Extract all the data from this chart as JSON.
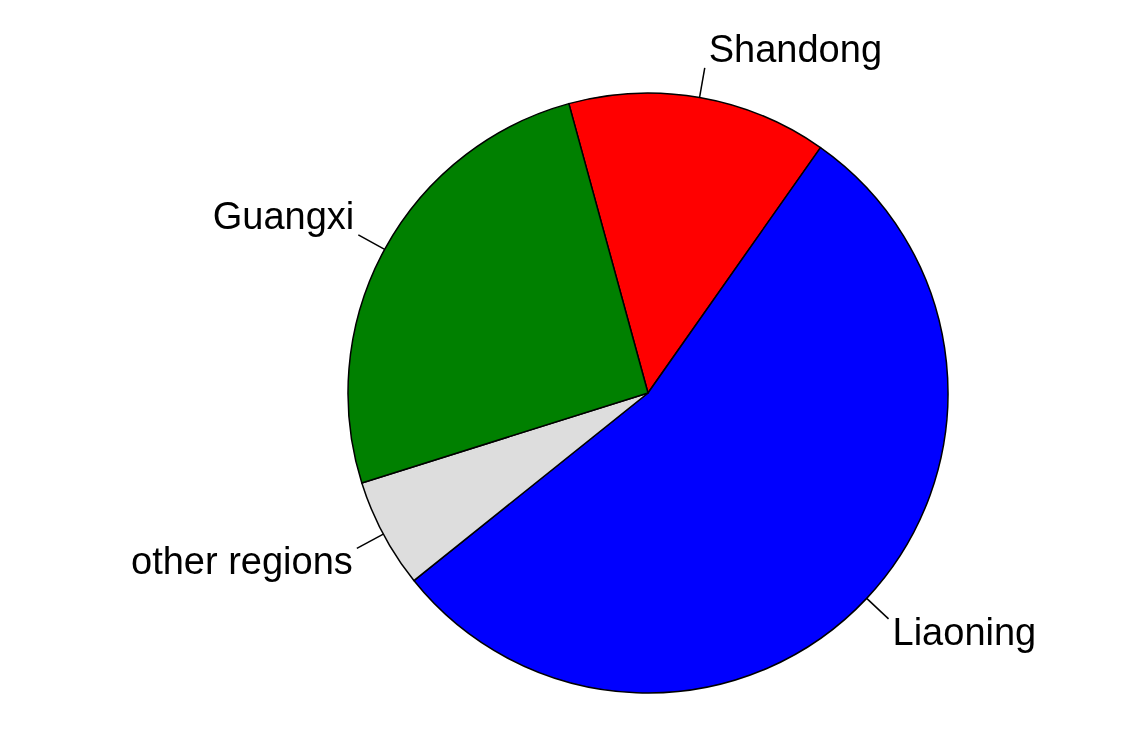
{
  "chart_data": {
    "type": "pie",
    "categories": [
      "Shandong",
      "Liaoning",
      "other regions",
      "Guangxi"
    ],
    "values": [
      14,
      54.5,
      5.9,
      25.6
    ],
    "colors": [
      "#ff0000",
      "#0000ff",
      "#dddddd",
      "#008000"
    ]
  }
}
